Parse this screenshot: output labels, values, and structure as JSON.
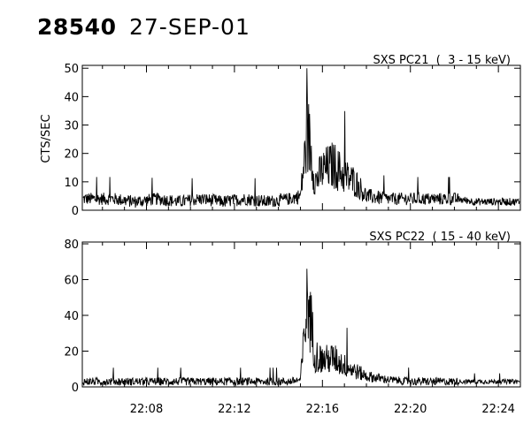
{
  "header": {
    "event_id": "28540",
    "date": "27-SEP-01"
  },
  "chart_data": [
    {
      "type": "line",
      "title": "SXS PC21  (  3 - 15 keV)",
      "ylabel": "CTS/SEC",
      "xlabel": "",
      "xlim": [
        "22:05:05",
        "22:25:00"
      ],
      "ylim": [
        0,
        51
      ],
      "yticks": [
        "0",
        "10",
        "20",
        "30",
        "40",
        "50"
      ],
      "xticks": [],
      "grid": false,
      "series": [
        {
          "time": [
            "22:05:30",
            "22:06:30",
            "22:07:30",
            "22:08:30",
            "22:09:30",
            "22:10:30",
            "22:11:30",
            "22:12:30",
            "22:13:30",
            "22:14:30",
            "22:15:00",
            "22:15:20",
            "22:15:40",
            "22:16:00",
            "22:16:30",
            "22:17:00",
            "22:17:30",
            "22:18:00",
            "22:19:00",
            "22:20:00",
            "22:21:00",
            "22:22:00",
            "22:23:00",
            "22:24:00",
            "22:24:50"
          ],
          "values": [
            4,
            4,
            3,
            4,
            3,
            4,
            3,
            4,
            3,
            4,
            5,
            28,
            10,
            14,
            16,
            12,
            10,
            5,
            4,
            4,
            4,
            4,
            3,
            3,
            3
          ]
        }
      ]
    },
    {
      "type": "line",
      "title": "SXS PC22  ( 15 - 40 keV)",
      "ylabel": "",
      "xlabel": "",
      "xlim": [
        "22:05:05",
        "22:25:00"
      ],
      "ylim": [
        0,
        81
      ],
      "yticks": [
        "0",
        "20",
        "40",
        "60",
        "80"
      ],
      "xticks": [
        "22:08",
        "22:12",
        "22:16",
        "22:20",
        "22:24"
      ],
      "grid": false,
      "series": [
        {
          "time": [
            "22:05:30",
            "22:06:30",
            "22:07:30",
            "22:08:30",
            "22:09:30",
            "22:10:30",
            "22:11:30",
            "22:12:30",
            "22:13:30",
            "22:14:30",
            "22:15:00",
            "22:15:20",
            "22:15:40",
            "22:16:00",
            "22:16:30",
            "22:17:00",
            "22:17:30",
            "22:18:00",
            "22:19:00",
            "22:20:00",
            "22:21:00",
            "22:22:00",
            "22:23:00",
            "22:24:00",
            "22:24:50"
          ],
          "values": [
            3,
            3,
            3,
            3,
            3,
            3,
            3,
            3,
            3,
            3,
            4,
            50,
            18,
            15,
            16,
            12,
            9,
            6,
            4,
            3,
            3,
            3,
            3,
            3,
            3
          ]
        }
      ]
    }
  ]
}
